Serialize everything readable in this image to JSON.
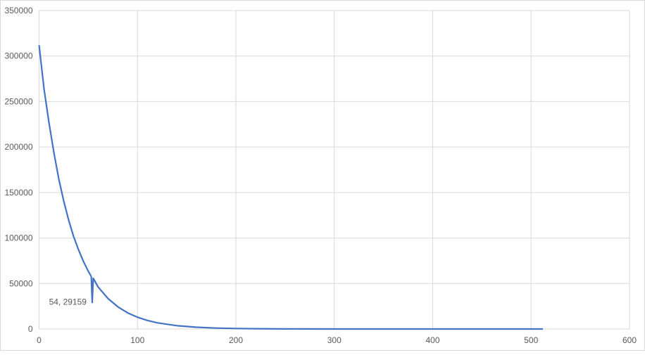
{
  "chart_data": {
    "type": "line",
    "title": "",
    "xlabel": "",
    "ylabel": "",
    "xlim": [
      0,
      600
    ],
    "ylim": [
      0,
      350000
    ],
    "x_ticks": [
      "0",
      "100",
      "200",
      "300",
      "400",
      "500",
      "600"
    ],
    "y_ticks": [
      "0",
      "50000",
      "100000",
      "150000",
      "200000",
      "250000",
      "300000",
      "350000"
    ],
    "grid": true,
    "legend": "none",
    "line_color": "#4472C4",
    "series": [
      {
        "x": [
          0,
          5,
          10,
          15,
          20,
          25,
          30,
          35,
          40,
          45,
          50,
          53,
          54,
          55,
          60,
          70,
          80,
          90,
          100,
          110,
          120,
          140,
          160,
          180,
          200,
          220,
          250,
          300,
          400,
          512
        ],
        "y": [
          312000,
          264000,
          227000,
          194000,
          164900,
          141000,
          119900,
          102000,
          87200,
          74400,
          63400,
          57600,
          29159,
          55800,
          46100,
          33500,
          24400,
          17700,
          12900,
          9400,
          6800,
          3600,
          1900,
          1000,
          530,
          280,
          105,
          21,
          1,
          0
        ]
      }
    ],
    "annotations": [
      {
        "text": "54, 29159",
        "x": 54,
        "y": 29159
      }
    ]
  }
}
